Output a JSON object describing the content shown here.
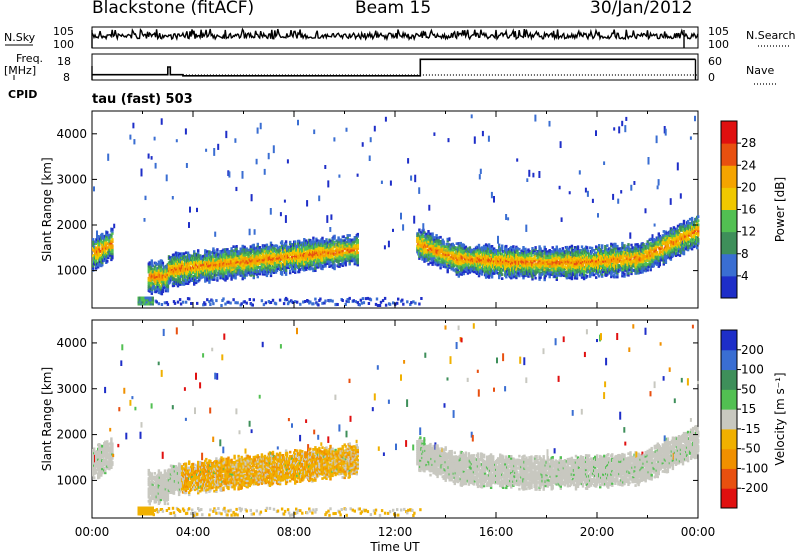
{
  "header": {
    "station": "Blackstone (fitACF)",
    "beam": "Beam 15",
    "date": "30/Jan/2012"
  },
  "left_labels": {
    "nsky": "N.Sky",
    "freq": "Freq.",
    "freq_unit": "[MHz]",
    "cpid": "CPID"
  },
  "right_labels": {
    "nsearch": "N.Search",
    "nave": "Nave"
  },
  "cpid_text": "tau (fast) 503",
  "colors": {
    "power_scale": [
      "#1e2ec8",
      "#3a6ed2",
      "#3e8f5a",
      "#52c052",
      "#f0c800",
      "#f5a400",
      "#e85010",
      "#e01010"
    ],
    "velocity_scale": [
      "#e01010",
      "#e85010",
      "#f09000",
      "#f0b000",
      "#c8c8c0",
      "#52c052",
      "#3e8f5a",
      "#3a6ed2",
      "#1e2ec8"
    ]
  },
  "chart_data": [
    {
      "type": "line",
      "name": "noise-panel",
      "left_axis": {
        "label": "N.Sky",
        "ticks": [
          "10^5",
          "10^0"
        ]
      },
      "right_axis": {
        "label": "N.Search",
        "ticks": [
          "10^5",
          "10^0"
        ]
      }
    },
    {
      "type": "line",
      "name": "frequency-panel",
      "left_axis": {
        "label": "Freq. [MHz]",
        "ticks": [
          18,
          8
        ]
      },
      "right_axis": {
        "label": "Nave",
        "ticks": [
          60,
          0
        ]
      },
      "series": [
        {
          "name": "Freq.",
          "x": [
            0,
            3.0,
            3.0,
            3.1,
            3.1,
            3.6,
            3.6,
            13.0,
            13.0,
            23.9
          ],
          "y": [
            9.5,
            9.5,
            13.0,
            13.0,
            9.5,
            9.5,
            9.0,
            9.0,
            16.5,
            16.5
          ]
        }
      ]
    },
    {
      "type": "heatmap",
      "name": "power-panel",
      "xlabel": "Time UT",
      "ylabel": "Slant Range [km]",
      "xlim": [
        0,
        24
      ],
      "ylim": [
        180,
        4500
      ],
      "x_ticks": [
        "00:00",
        "04:00",
        "08:00",
        "12:00",
        "16:00",
        "20:00",
        "00:00"
      ],
      "y_ticks": [
        1000,
        2000,
        3000,
        4000
      ],
      "colorbar": {
        "label": "Power [dB]",
        "ticks": [
          4,
          8,
          12,
          16,
          20,
          24,
          28
        ],
        "range": [
          0,
          30
        ]
      }
    },
    {
      "type": "heatmap",
      "name": "velocity-panel",
      "xlabel": "Time UT",
      "ylabel": "Slant Range [km]",
      "xlim": [
        0,
        24
      ],
      "ylim": [
        180,
        4500
      ],
      "x_ticks": [
        "00:00",
        "04:00",
        "08:00",
        "12:00",
        "16:00",
        "20:00",
        "00:00"
      ],
      "y_ticks": [
        1000,
        2000,
        3000,
        4000
      ],
      "colorbar": {
        "label": "Velocity [m s^-1]",
        "ticks": [
          -200,
          -100,
          -50,
          -15,
          15,
          50,
          100,
          200
        ]
      }
    }
  ],
  "time_axis_label": "Time UT",
  "time_ticks": [
    "00:00",
    "04:00",
    "08:00",
    "12:00",
    "16:00",
    "20:00",
    "00:00"
  ]
}
